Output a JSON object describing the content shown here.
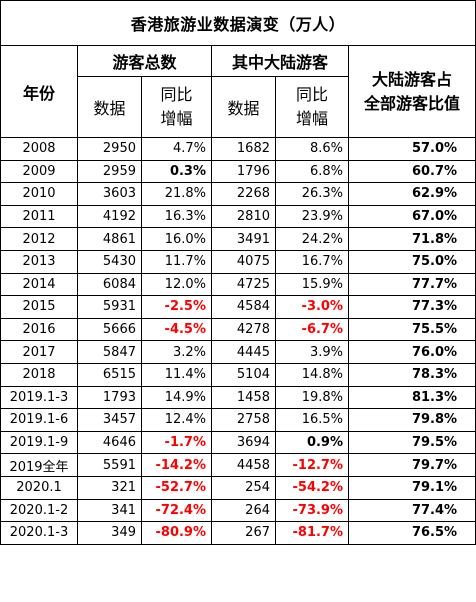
{
  "title": "香港旅游业数据演变（万人）",
  "headers": {
    "year": "年份",
    "total_group": "游客总数",
    "mainland_group": "其中大陆游客",
    "ratio": "大陆游客占全部游客比值",
    "ratio_line1": "大陆游客占",
    "ratio_line2": "全部游客比值",
    "data": "数据",
    "yoy_line1": "同比",
    "yoy_line2": "增幅"
  },
  "colors": {
    "negative": "#ff0000",
    "border": "#000000"
  },
  "rows": [
    {
      "year": "2008",
      "total": "2950",
      "total_yoy": "4.7%",
      "total_yoy_style": "normal",
      "mainland": "1682",
      "mainland_yoy": "8.6%",
      "mainland_yoy_style": "normal",
      "ratio": "57.0%"
    },
    {
      "year": "2009",
      "total": "2959",
      "total_yoy": "0.3%",
      "total_yoy_style": "bold",
      "mainland": "1796",
      "mainland_yoy": "6.8%",
      "mainland_yoy_style": "normal",
      "ratio": "60.7%"
    },
    {
      "year": "2010",
      "total": "3603",
      "total_yoy": "21.8%",
      "total_yoy_style": "normal",
      "mainland": "2268",
      "mainland_yoy": "26.3%",
      "mainland_yoy_style": "normal",
      "ratio": "62.9%"
    },
    {
      "year": "2011",
      "total": "4192",
      "total_yoy": "16.3%",
      "total_yoy_style": "normal",
      "mainland": "2810",
      "mainland_yoy": "23.9%",
      "mainland_yoy_style": "normal",
      "ratio": "67.0%"
    },
    {
      "year": "2012",
      "total": "4861",
      "total_yoy": "16.0%",
      "total_yoy_style": "normal",
      "mainland": "3491",
      "mainland_yoy": "24.2%",
      "mainland_yoy_style": "normal",
      "ratio": "71.8%"
    },
    {
      "year": "2013",
      "total": "5430",
      "total_yoy": "11.7%",
      "total_yoy_style": "normal",
      "mainland": "4075",
      "mainland_yoy": "16.7%",
      "mainland_yoy_style": "normal",
      "ratio": "75.0%"
    },
    {
      "year": "2014",
      "total": "6084",
      "total_yoy": "12.0%",
      "total_yoy_style": "normal",
      "mainland": "4725",
      "mainland_yoy": "15.9%",
      "mainland_yoy_style": "normal",
      "ratio": "77.7%"
    },
    {
      "year": "2015",
      "total": "5931",
      "total_yoy": "-2.5%",
      "total_yoy_style": "neg",
      "mainland": "4584",
      "mainland_yoy": "-3.0%",
      "mainland_yoy_style": "neg",
      "ratio": "77.3%"
    },
    {
      "year": "2016",
      "total": "5666",
      "total_yoy": "-4.5%",
      "total_yoy_style": "neg",
      "mainland": "4278",
      "mainland_yoy": "-6.7%",
      "mainland_yoy_style": "neg",
      "ratio": "75.5%"
    },
    {
      "year": "2017",
      "total": "5847",
      "total_yoy": "3.2%",
      "total_yoy_style": "normal",
      "mainland": "4445",
      "mainland_yoy": "3.9%",
      "mainland_yoy_style": "normal",
      "ratio": "76.0%"
    },
    {
      "year": "2018",
      "total": "6515",
      "total_yoy": "11.4%",
      "total_yoy_style": "normal",
      "mainland": "5104",
      "mainland_yoy": "14.8%",
      "mainland_yoy_style": "normal",
      "ratio": "78.3%"
    },
    {
      "year": "2019.1-3",
      "total": "1793",
      "total_yoy": "14.9%",
      "total_yoy_style": "normal",
      "mainland": "1458",
      "mainland_yoy": "19.8%",
      "mainland_yoy_style": "normal",
      "ratio": "81.3%"
    },
    {
      "year": "2019.1-6",
      "total": "3457",
      "total_yoy": "12.4%",
      "total_yoy_style": "normal",
      "mainland": "2758",
      "mainland_yoy": "16.5%",
      "mainland_yoy_style": "normal",
      "ratio": "79.8%"
    },
    {
      "year": "2019.1-9",
      "total": "4646",
      "total_yoy": "-1.7%",
      "total_yoy_style": "neg",
      "mainland": "3694",
      "mainland_yoy": "0.9%",
      "mainland_yoy_style": "bold",
      "ratio": "79.5%"
    },
    {
      "year": "2019全年",
      "total": "5591",
      "total_yoy": "-14.2%",
      "total_yoy_style": "neg",
      "mainland": "4458",
      "mainland_yoy": "-12.7%",
      "mainland_yoy_style": "neg",
      "ratio": "79.7%"
    },
    {
      "year": "2020.1",
      "total": "321",
      "total_yoy": "-52.7%",
      "total_yoy_style": "neg",
      "mainland": "254",
      "mainland_yoy": "-54.2%",
      "mainland_yoy_style": "neg",
      "ratio": "79.1%"
    },
    {
      "year": "2020.1-2",
      "total": "341",
      "total_yoy": "-72.4%",
      "total_yoy_style": "neg",
      "mainland": "264",
      "mainland_yoy": "-73.9%",
      "mainland_yoy_style": "neg",
      "ratio": "77.4%"
    },
    {
      "year": "2020.1-3",
      "total": "349",
      "total_yoy": "-80.9%",
      "total_yoy_style": "neg",
      "mainland": "267",
      "mainland_yoy": "-81.7%",
      "mainland_yoy_style": "neg",
      "ratio": "76.5%"
    }
  ]
}
